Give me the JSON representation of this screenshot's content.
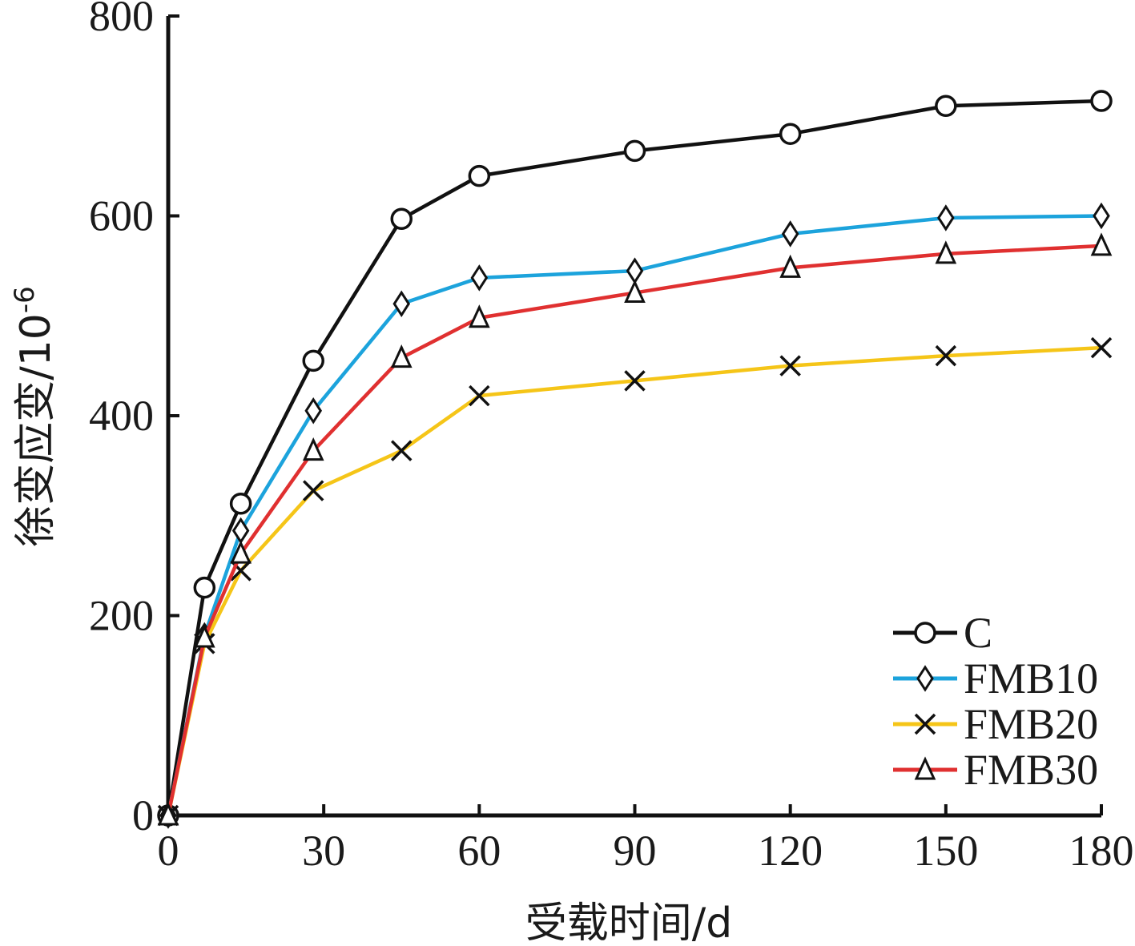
{
  "chart_data": {
    "type": "line",
    "xlabel": "受载时间/d",
    "ylabel": "徐变应变/10",
    "ylabel_exponent": "-6",
    "xlim": [
      0,
      180
    ],
    "ylim": [
      0,
      800
    ],
    "xticks": [
      0,
      30,
      60,
      90,
      120,
      150,
      180
    ],
    "yticks": [
      0,
      200,
      400,
      600,
      800
    ],
    "grid": false,
    "legend_position": "bottom-right",
    "x": [
      0,
      7,
      14,
      28,
      45,
      60,
      90,
      120,
      150,
      180
    ],
    "series": [
      {
        "name": "C",
        "color": "#111111",
        "marker": "circle",
        "values": [
          0,
          228,
          312,
          455,
          597,
          640,
          665,
          682,
          710,
          715
        ]
      },
      {
        "name": "FMB10",
        "color": "#1ca3dc",
        "marker": "diamond",
        "values": [
          0,
          180,
          285,
          405,
          512,
          538,
          545,
          582,
          598,
          600
        ]
      },
      {
        "name": "FMB20",
        "color": "#f5c518",
        "marker": "x",
        "values": [
          0,
          172,
          245,
          325,
          365,
          420,
          435,
          450,
          460,
          468
        ]
      },
      {
        "name": "FMB30",
        "color": "#e03030",
        "marker": "triangle",
        "values": [
          0,
          178,
          262,
          365,
          458,
          498,
          523,
          548,
          562,
          570
        ]
      }
    ]
  }
}
